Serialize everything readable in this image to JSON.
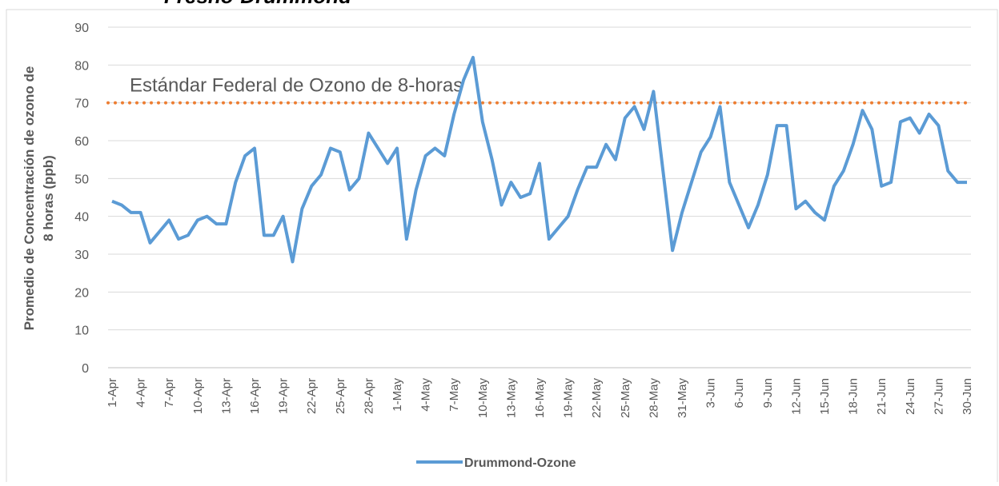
{
  "chart_data": {
    "type": "line",
    "title": "Fresno-Drummond",
    "y_label_lines": [
      "Promedio de Concentración de ozono de",
      "8 horas (ppb)"
    ],
    "categories": [
      "1-Apr",
      null,
      null,
      "4-Apr",
      null,
      null,
      "7-Apr",
      null,
      null,
      "10-Apr",
      null,
      null,
      "13-Apr",
      null,
      null,
      "16-Apr",
      null,
      null,
      "19-Apr",
      null,
      null,
      "22-Apr",
      null,
      null,
      "25-Apr",
      null,
      null,
      "28-Apr",
      null,
      null,
      "1-May",
      null,
      null,
      "4-May",
      null,
      null,
      "7-May",
      null,
      null,
      "10-May",
      null,
      null,
      "13-May",
      null,
      null,
      "16-May",
      null,
      null,
      "19-May",
      null,
      null,
      "22-May",
      null,
      null,
      "25-May",
      null,
      null,
      "28-May",
      null,
      null,
      "31-May",
      null,
      null,
      "3-Jun",
      null,
      null,
      "6-Jun",
      null,
      null,
      "9-Jun",
      null,
      null,
      "12-Jun",
      null,
      null,
      "15-Jun",
      null,
      null,
      "18-Jun",
      null,
      null,
      "21-Jun",
      null,
      null,
      "24-Jun",
      null,
      null,
      "27-Jun",
      null,
      null,
      "30-Jun"
    ],
    "series": [
      {
        "name": "Drummond-Ozone",
        "color": "#5b9bd5",
        "values": [
          44,
          43,
          41,
          41,
          33,
          36,
          39,
          34,
          35,
          39,
          40,
          38,
          38,
          49,
          56,
          58,
          35,
          35,
          40,
          28,
          42,
          48,
          51,
          58,
          57,
          47,
          50,
          62,
          58,
          54,
          58,
          34,
          47,
          56,
          58,
          56,
          67,
          76,
          82,
          65,
          55,
          43,
          49,
          45,
          46,
          54,
          34,
          37,
          40,
          47,
          53,
          53,
          59,
          55,
          66,
          69,
          63,
          73,
          52,
          31,
          41,
          49,
          57,
          61,
          69,
          49,
          43,
          37,
          43,
          51,
          64,
          64,
          42,
          44,
          41,
          39,
          48,
          52,
          59,
          68,
          63,
          48,
          49,
          65,
          66,
          62,
          67,
          64,
          52,
          49,
          49
        ]
      }
    ],
    "reference_line": {
      "value": 70,
      "label": "Estándar Federal de Ozono de 8-horas",
      "color": "#ed7d31"
    },
    "ylim": [
      0,
      90
    ],
    "yticks": [
      0,
      10,
      20,
      30,
      40,
      50,
      60,
      70,
      80,
      90
    ],
    "grid": true,
    "legend": "bottom"
  }
}
